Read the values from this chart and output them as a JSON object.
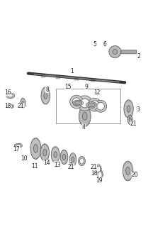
{
  "title": "",
  "background_color": "#ffffff",
  "line_color": "#555555",
  "part_color": "#888888",
  "part_fill": "#cccccc",
  "part_dark": "#666666",
  "part_light": "#dddddd",
  "label_color": "#222222",
  "label_fontsize": 5.5,
  "fig_width": 2.16,
  "fig_height": 3.2,
  "dpi": 100
}
